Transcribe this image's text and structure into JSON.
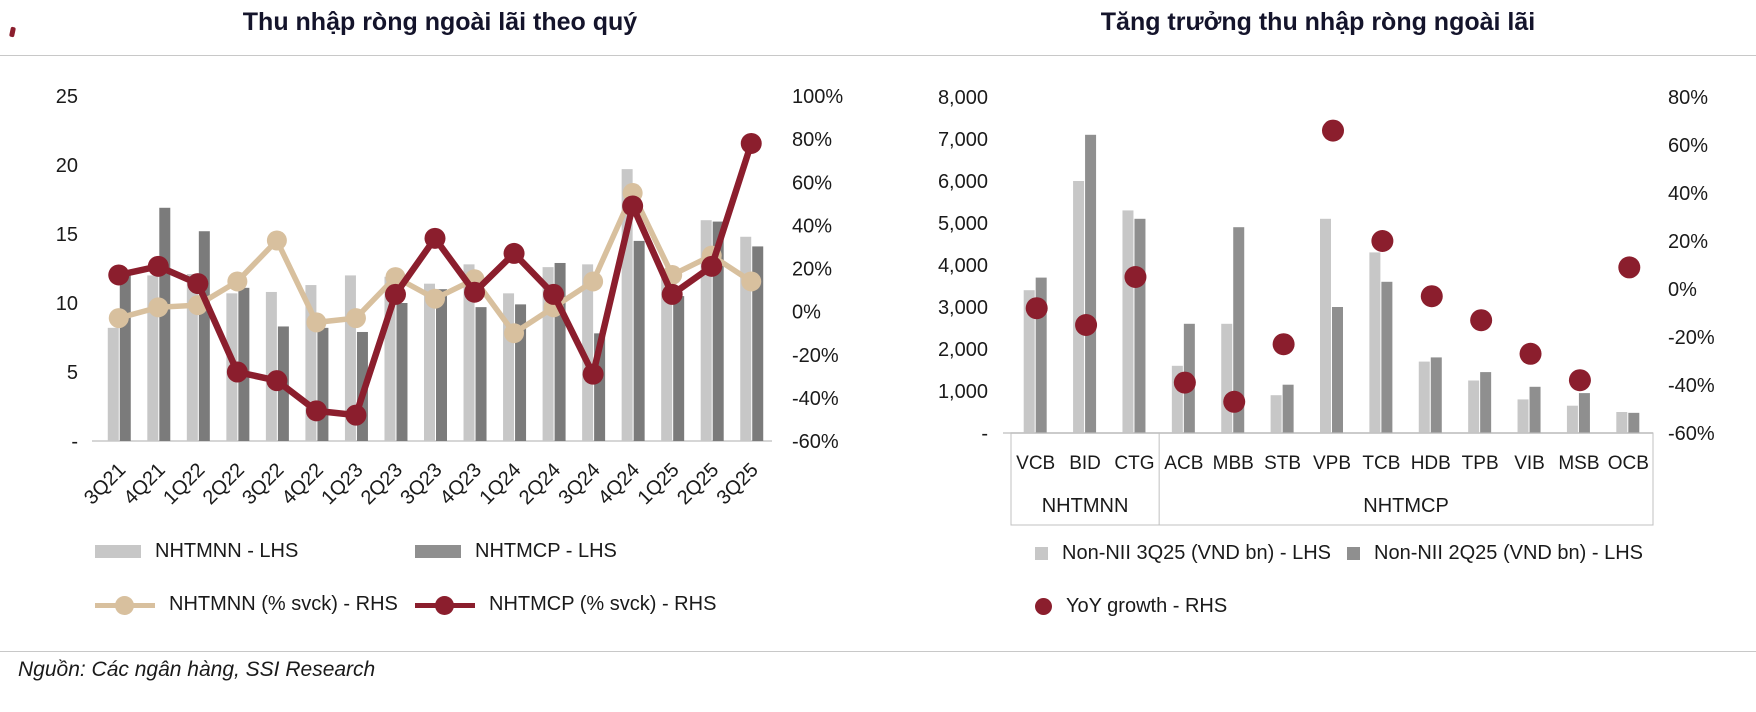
{
  "page": {
    "source": "Nguồn: Các ngân hàng, SSI Research"
  },
  "colors": {
    "bar_light": "#C7C7C7",
    "bar_dark_left": "#7B7B7B",
    "bar_dark_right": "#8F8F8F",
    "tan": "#D8C09E",
    "maroon": "#8B1E2D",
    "axis_line": "#D6D6D6",
    "box_border": "#C0C0C0",
    "title": "#14142B"
  },
  "chart_data": [
    {
      "type": "combo-bar-line",
      "title": "Thu nhập ròng ngoài lãi theo quý",
      "categories": [
        "3Q21",
        "4Q21",
        "1Q22",
        "2Q22",
        "3Q22",
        "4Q22",
        "1Q23",
        "2Q23",
        "3Q23",
        "4Q23",
        "1Q24",
        "2Q24",
        "3Q24",
        "4Q24",
        "1Q25",
        "2Q25",
        "3Q25"
      ],
      "series": [
        {
          "name": "NHTMNN - LHS",
          "type": "bar",
          "axis": "left",
          "color_key": "bar_light",
          "values": [
            8.2,
            12.0,
            12.1,
            10.7,
            10.8,
            11.3,
            12.0,
            11.9,
            11.4,
            12.8,
            10.7,
            12.6,
            12.8,
            19.7,
            12.2,
            16.0,
            14.8
          ]
        },
        {
          "name": "NHTMCP - LHS",
          "type": "bar",
          "axis": "left",
          "color_key": "bar_dark_left",
          "values": [
            12.0,
            16.9,
            15.2,
            11.1,
            8.3,
            8.2,
            7.9,
            10.0,
            11.0,
            9.7,
            9.9,
            12.9,
            7.8,
            14.5,
            10.5,
            15.9,
            14.1
          ]
        },
        {
          "name": "NHTMNN (% svck) - RHS",
          "type": "line",
          "axis": "right",
          "color_key": "tan",
          "values": [
            -3,
            2,
            3,
            14,
            33,
            -5,
            -3,
            16,
            6,
            15,
            -10,
            2,
            14,
            55,
            17,
            26,
            14
          ]
        },
        {
          "name": "NHTMCP (% svck) - RHS",
          "type": "line",
          "axis": "right",
          "color_key": "maroon",
          "values": [
            17,
            21,
            13,
            -28,
            -32,
            -46,
            -48,
            8,
            34,
            9,
            27,
            8,
            -29,
            49,
            8,
            21,
            78
          ]
        }
      ],
      "left_axis": {
        "min": 0,
        "max": 25,
        "ticks": [
          "25",
          "20",
          "15",
          "10",
          "5",
          "-"
        ],
        "values": [
          25,
          20,
          15,
          10,
          5,
          0
        ]
      },
      "right_axis": {
        "min": -60,
        "max": 100,
        "ticks": [
          "100%",
          "80%",
          "60%",
          "40%",
          "20%",
          "0%",
          "-20%",
          "-40%",
          "-60%"
        ],
        "values": [
          100,
          80,
          60,
          40,
          20,
          0,
          -20,
          -40,
          -60
        ]
      },
      "grid": false,
      "legend_position": "bottom",
      "x_labels_rotated": true
    },
    {
      "type": "combo-bar-scatter",
      "title": "Tăng trưởng thu nhập ròng ngoài lãi",
      "categories": [
        "VCB",
        "BID",
        "CTG",
        "ACB",
        "MBB",
        "STB",
        "VPB",
        "TCB",
        "HDB",
        "TPB",
        "VIB",
        "MSB",
        "OCB"
      ],
      "groups": [
        {
          "label": "NHTMNN",
          "span": 3
        },
        {
          "label": "NHTMCP",
          "span": 10
        }
      ],
      "series": [
        {
          "name": "Non-NII 3Q25 (VND bn) - LHS",
          "type": "bar",
          "axis": "left",
          "color_key": "bar_light",
          "values": [
            3400,
            6000,
            5300,
            1600,
            2600,
            900,
            5100,
            4300,
            1700,
            1250,
            800,
            650,
            500
          ]
        },
        {
          "name": "Non-NII 2Q25 (VND bn) - LHS",
          "type": "bar",
          "axis": "left",
          "color_key": "bar_dark_right",
          "values": [
            3700,
            7100,
            5100,
            2600,
            4900,
            1150,
            3000,
            3600,
            1800,
            1450,
            1100,
            950,
            480
          ]
        },
        {
          "name": "YoY growth - RHS",
          "type": "dot",
          "axis": "right",
          "color_key": "maroon",
          "values": [
            -8,
            -15,
            5,
            -39,
            -47,
            -23,
            66,
            20,
            -3,
            -13,
            -27,
            -38,
            9
          ]
        }
      ],
      "left_axis": {
        "min": 0,
        "max": 8000,
        "ticks": [
          "8,000",
          "7,000",
          "6,000",
          "5,000",
          "4,000",
          "3,000",
          "2,000",
          "1,000",
          "-"
        ],
        "values": [
          8000,
          7000,
          6000,
          5000,
          4000,
          3000,
          2000,
          1000,
          0
        ]
      },
      "right_axis": {
        "min": -60,
        "max": 80,
        "ticks": [
          "80%",
          "60%",
          "40%",
          "20%",
          "0%",
          "-20%",
          "-40%",
          "-60%"
        ],
        "values": [
          80,
          60,
          40,
          20,
          0,
          -20,
          -40,
          -60
        ]
      },
      "grid": false,
      "legend_position": "bottom",
      "x_labels_rotated": false
    }
  ]
}
